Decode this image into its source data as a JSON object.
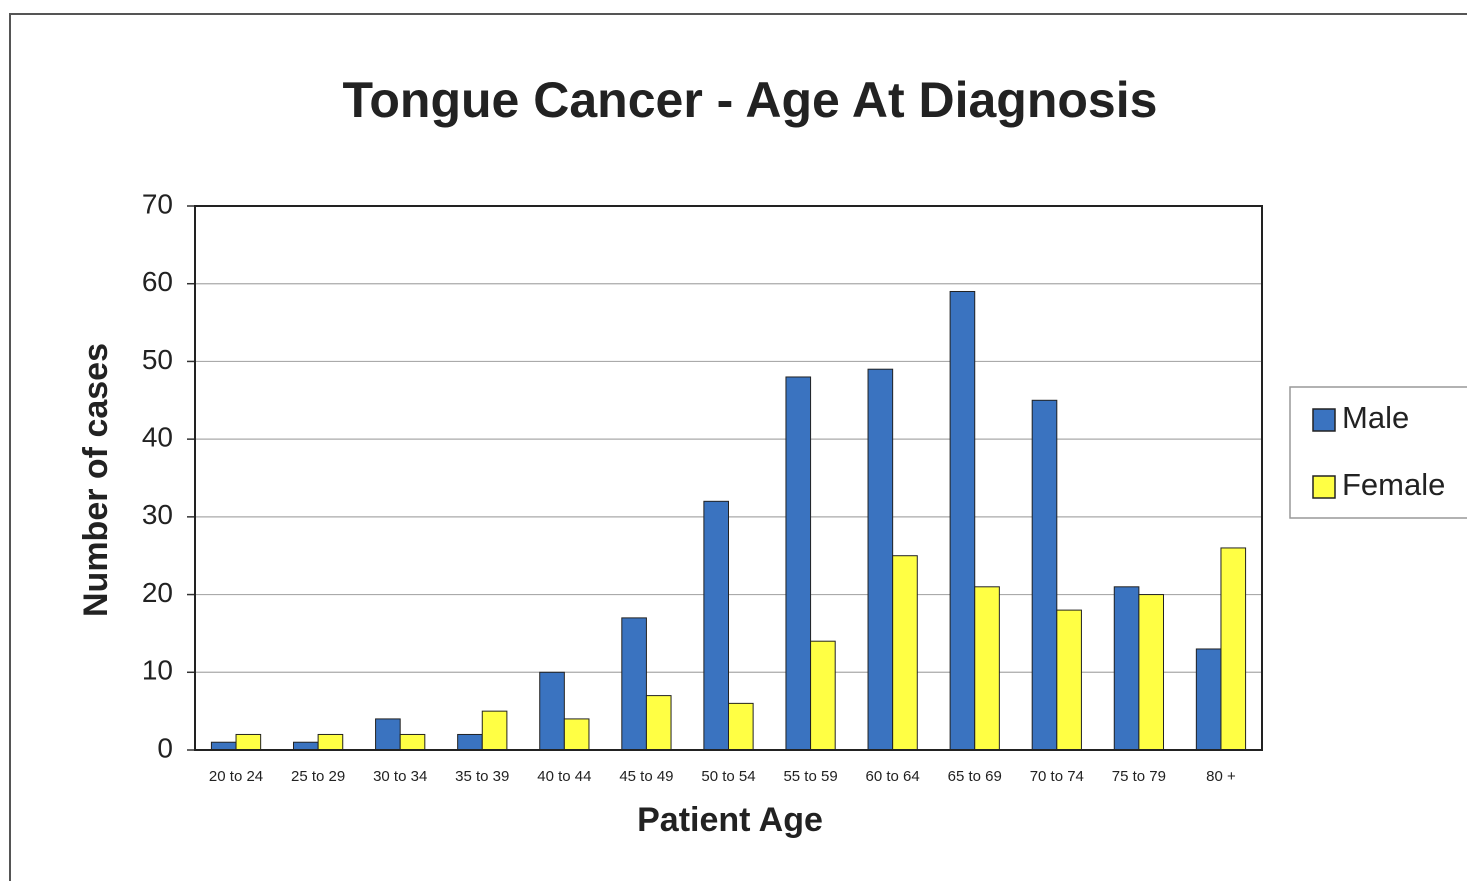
{
  "chart_data": {
    "type": "bar",
    "title": "Tongue Cancer - Age At Diagnosis",
    "x_label": "Patient Age",
    "y_label": "Number of cases",
    "categories": [
      "20 to 24",
      "25 to 29",
      "30 to 34",
      "35 to 39",
      "40 to 44",
      "45 to 49",
      "50 to 54",
      "55 to 59",
      "60 to 64",
      "65 to 69",
      "70 to 74",
      "75 to 79",
      "80 +"
    ],
    "series": [
      {
        "name": "Male",
        "color": "#3a73c0",
        "values": [
          1,
          1,
          4,
          2,
          10,
          17,
          32,
          48,
          49,
          59,
          45,
          21,
          13
        ]
      },
      {
        "name": "Female",
        "color": "#ffff44",
        "values": [
          2,
          2,
          2,
          5,
          4,
          7,
          6,
          14,
          25,
          21,
          18,
          20,
          26
        ]
      }
    ],
    "ylim": [
      0,
      70
    ],
    "yticks": [
      0,
      10,
      20,
      30,
      40,
      50,
      60,
      70
    ],
    "grid": true,
    "legend": "right"
  }
}
